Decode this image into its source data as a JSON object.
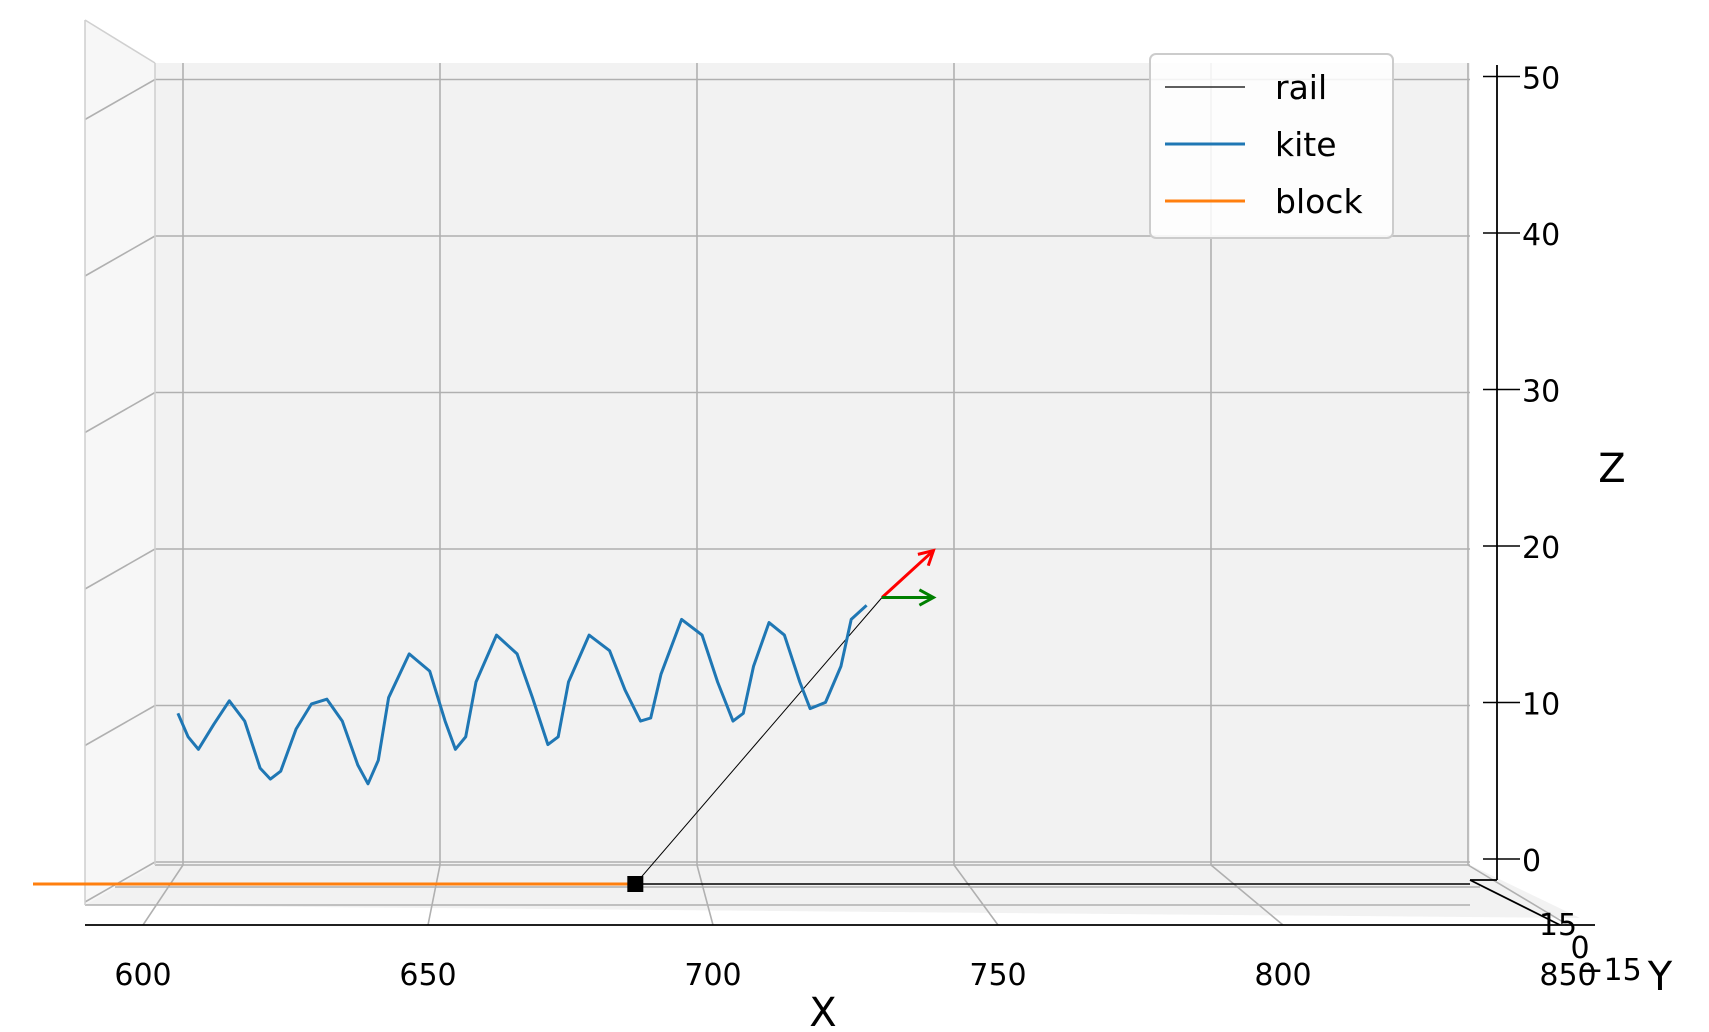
{
  "chart_data": {
    "type": "line",
    "projection": "3d",
    "title": "",
    "xlabel": "X",
    "ylabel": "Y",
    "zlabel": "Z",
    "xlim": [
      600,
      850
    ],
    "zlim": [
      0,
      52
    ],
    "x_ticks": [
      "600",
      "650",
      "700",
      "750",
      "800",
      "850"
    ],
    "y_ticks": [
      "15",
      "0",
      "−15"
    ],
    "z_ticks": [
      "0",
      "10",
      "20",
      "30",
      "40",
      "50"
    ],
    "grid": true,
    "legend_position": "top-right",
    "series": [
      {
        "name": "rail",
        "color": "#000000",
        "points": [
          [
            688,
            0
          ],
          [
            736,
            16.9
          ]
        ]
      },
      {
        "name": "kite",
        "color": "#1f77b4",
        "points": [
          [
            599,
            9.5
          ],
          [
            601,
            8.0
          ],
          [
            603,
            7.2
          ],
          [
            606,
            8.8
          ],
          [
            609,
            10.3
          ],
          [
            612,
            9.0
          ],
          [
            615,
            6.0
          ],
          [
            617,
            5.3
          ],
          [
            619,
            5.8
          ],
          [
            622,
            8.5
          ],
          [
            625,
            10.1
          ],
          [
            628,
            10.4
          ],
          [
            631,
            9.0
          ],
          [
            634,
            6.2
          ],
          [
            636,
            5.0
          ],
          [
            638,
            6.5
          ],
          [
            640,
            10.5
          ],
          [
            644,
            13.3
          ],
          [
            648,
            12.2
          ],
          [
            651,
            9.0
          ],
          [
            653,
            7.2
          ],
          [
            655,
            8.0
          ],
          [
            657,
            11.5
          ],
          [
            661,
            14.5
          ],
          [
            665,
            13.3
          ],
          [
            668,
            10.5
          ],
          [
            671,
            7.5
          ],
          [
            673,
            8.0
          ],
          [
            675,
            11.5
          ],
          [
            679,
            14.5
          ],
          [
            683,
            13.5
          ],
          [
            686,
            11.0
          ],
          [
            689,
            9.0
          ],
          [
            691,
            9.2
          ],
          [
            693,
            12.0
          ],
          [
            697,
            15.5
          ],
          [
            701,
            14.5
          ],
          [
            704,
            11.5
          ],
          [
            707,
            9.0
          ],
          [
            709,
            9.5
          ],
          [
            711,
            12.5
          ],
          [
            714,
            15.3
          ],
          [
            717,
            14.5
          ],
          [
            720,
            11.5
          ],
          [
            722,
            9.8
          ],
          [
            725,
            10.2
          ],
          [
            728,
            12.5
          ],
          [
            730,
            15.5
          ],
          [
            733,
            16.4
          ]
        ]
      },
      {
        "name": "block",
        "color": "#ff7f0e",
        "points": [
          [
            590,
            0
          ],
          [
            688,
            0
          ]
        ]
      }
    ],
    "block_marker": [
      688,
      0
    ],
    "arrows": [
      {
        "color": "#ff0000",
        "from": [
          736,
          16.9
        ],
        "to": [
          746,
          19.9
        ]
      },
      {
        "color": "#008000",
        "from": [
          736,
          16.9
        ],
        "to": [
          746,
          16.9
        ]
      }
    ]
  }
}
